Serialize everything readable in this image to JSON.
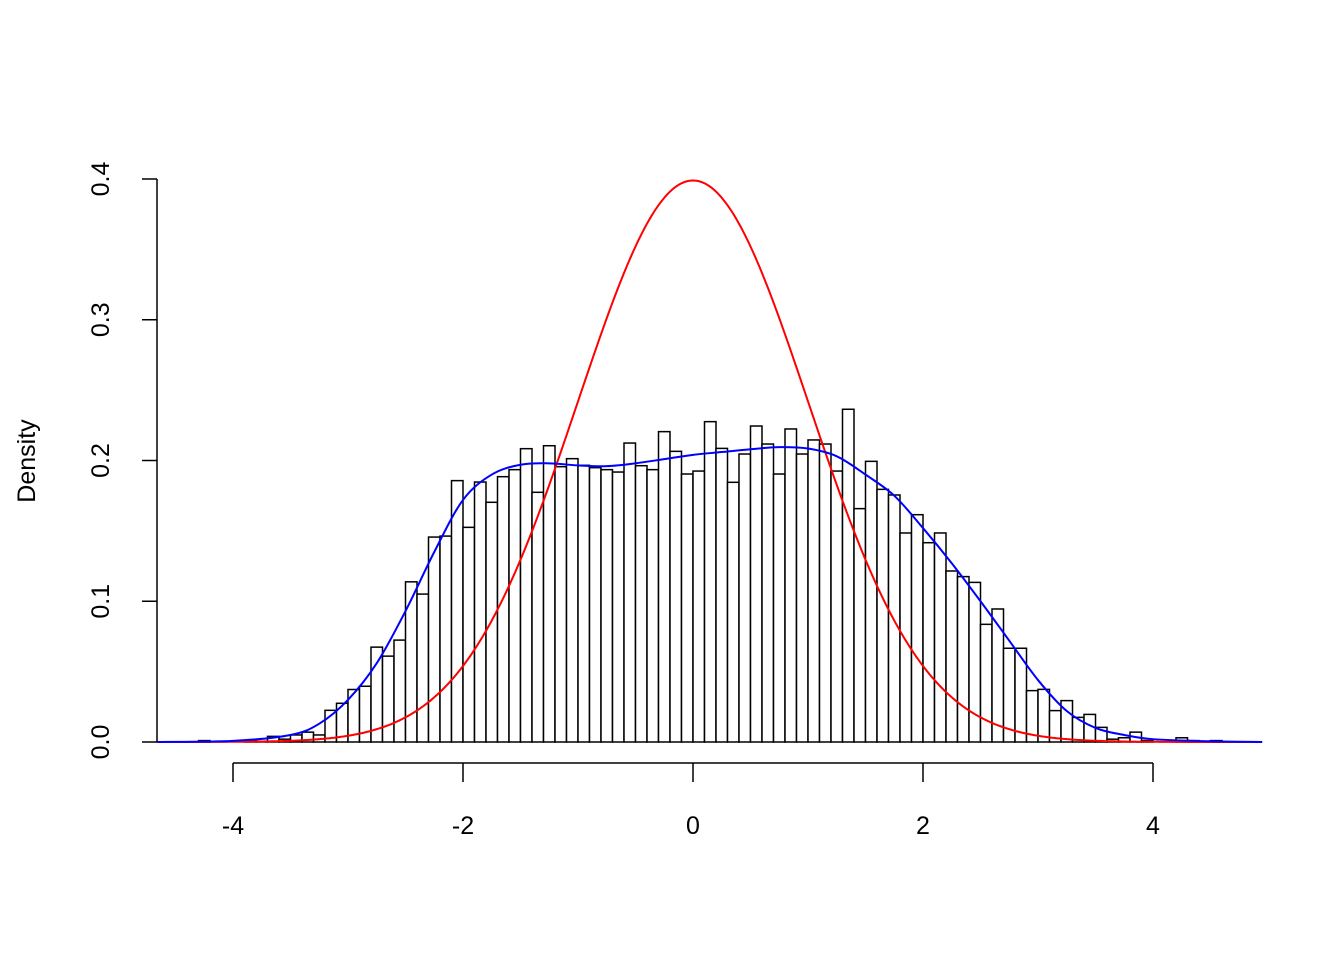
{
  "chart_data": {
    "type": "bar",
    "title": "",
    "xlabel": "",
    "ylabel": "Density",
    "xlim": [
      -4.66,
      4.95
    ],
    "ylim": [
      0,
      0.4
    ],
    "grid": false,
    "x_ticks": [
      "-4",
      "-2",
      "0",
      "2",
      "4"
    ],
    "x_tick_values": [
      -4,
      -2,
      0,
      2,
      4
    ],
    "y_ticks": [
      "0.0",
      "0.1",
      "0.2",
      "0.3",
      "0.4"
    ],
    "y_tick_values": [
      0,
      0.1,
      0.2,
      0.3,
      0.4
    ],
    "histogram": {
      "bin_width": 0.1,
      "bin_start": -4.3,
      "fill": "#ffffff",
      "border_color": "#000000",
      "densities": [
        0.001,
        0,
        0,
        0,
        0.001,
        0.0005,
        0.004,
        0.002,
        0.005,
        0.007,
        0.005,
        0.0225,
        0.0275,
        0.0373,
        0.0396,
        0.0674,
        0.061,
        0.0724,
        0.1138,
        0.1051,
        0.1456,
        0.1463,
        0.1857,
        0.1525,
        0.1847,
        0.1703,
        0.1885,
        0.1935,
        0.2084,
        0.1774,
        0.2105,
        0.1956,
        0.2013,
        0.1966,
        0.1949,
        0.1935,
        0.1918,
        0.2124,
        0.1963,
        0.1935,
        0.2205,
        0.2065,
        0.1904,
        0.1925,
        0.2276,
        0.2086,
        0.1845,
        0.2046,
        0.2245,
        0.2117,
        0.1904,
        0.2224,
        0.2046,
        0.2146,
        0.2117,
        0.1925,
        0.2364,
        0.1658,
        0.1994,
        0.1795,
        0.1755,
        0.1485,
        0.1615,
        0.1416,
        0.1485,
        0.1215,
        0.1175,
        0.1134,
        0.0836,
        0.0945,
        0.0666,
        0.0666,
        0.0365,
        0.0374,
        0.0223,
        0.0294,
        0.0175,
        0.0196,
        0.0104,
        0.002,
        0.003,
        0.007,
        0.001,
        0,
        0,
        0.003,
        0.001,
        0,
        0.001
      ]
    },
    "series": [
      {
        "kind": "normal-density-curve",
        "mean": 0,
        "sd": 1,
        "color": "#ff0000"
      },
      {
        "kind": "kernel-density-curve",
        "color": "#0000ff",
        "x": [
          -4.66,
          -4,
          -3.5,
          -3.25,
          -3,
          -2.75,
          -2.5,
          -2.25,
          -2,
          -1.75,
          -1.5,
          -1.25,
          -1,
          -0.75,
          -0.5,
          -0.25,
          0,
          0.25,
          0.5,
          0.75,
          1,
          1.25,
          1.5,
          1.75,
          2,
          2.25,
          2.5,
          2.75,
          3,
          3.25,
          3.5,
          3.75,
          4,
          4.5,
          4.95
        ],
        "y": [
          0,
          0.0008,
          0.005,
          0.013,
          0.03,
          0.056,
          0.093,
          0.135,
          0.172,
          0.19,
          0.197,
          0.198,
          0.1965,
          0.196,
          0.198,
          0.201,
          0.204,
          0.206,
          0.208,
          0.2095,
          0.2085,
          0.203,
          0.19,
          0.175,
          0.152,
          0.127,
          0.1,
          0.072,
          0.044,
          0.022,
          0.01,
          0.005,
          0.002,
          0.0005,
          0
        ]
      }
    ]
  }
}
